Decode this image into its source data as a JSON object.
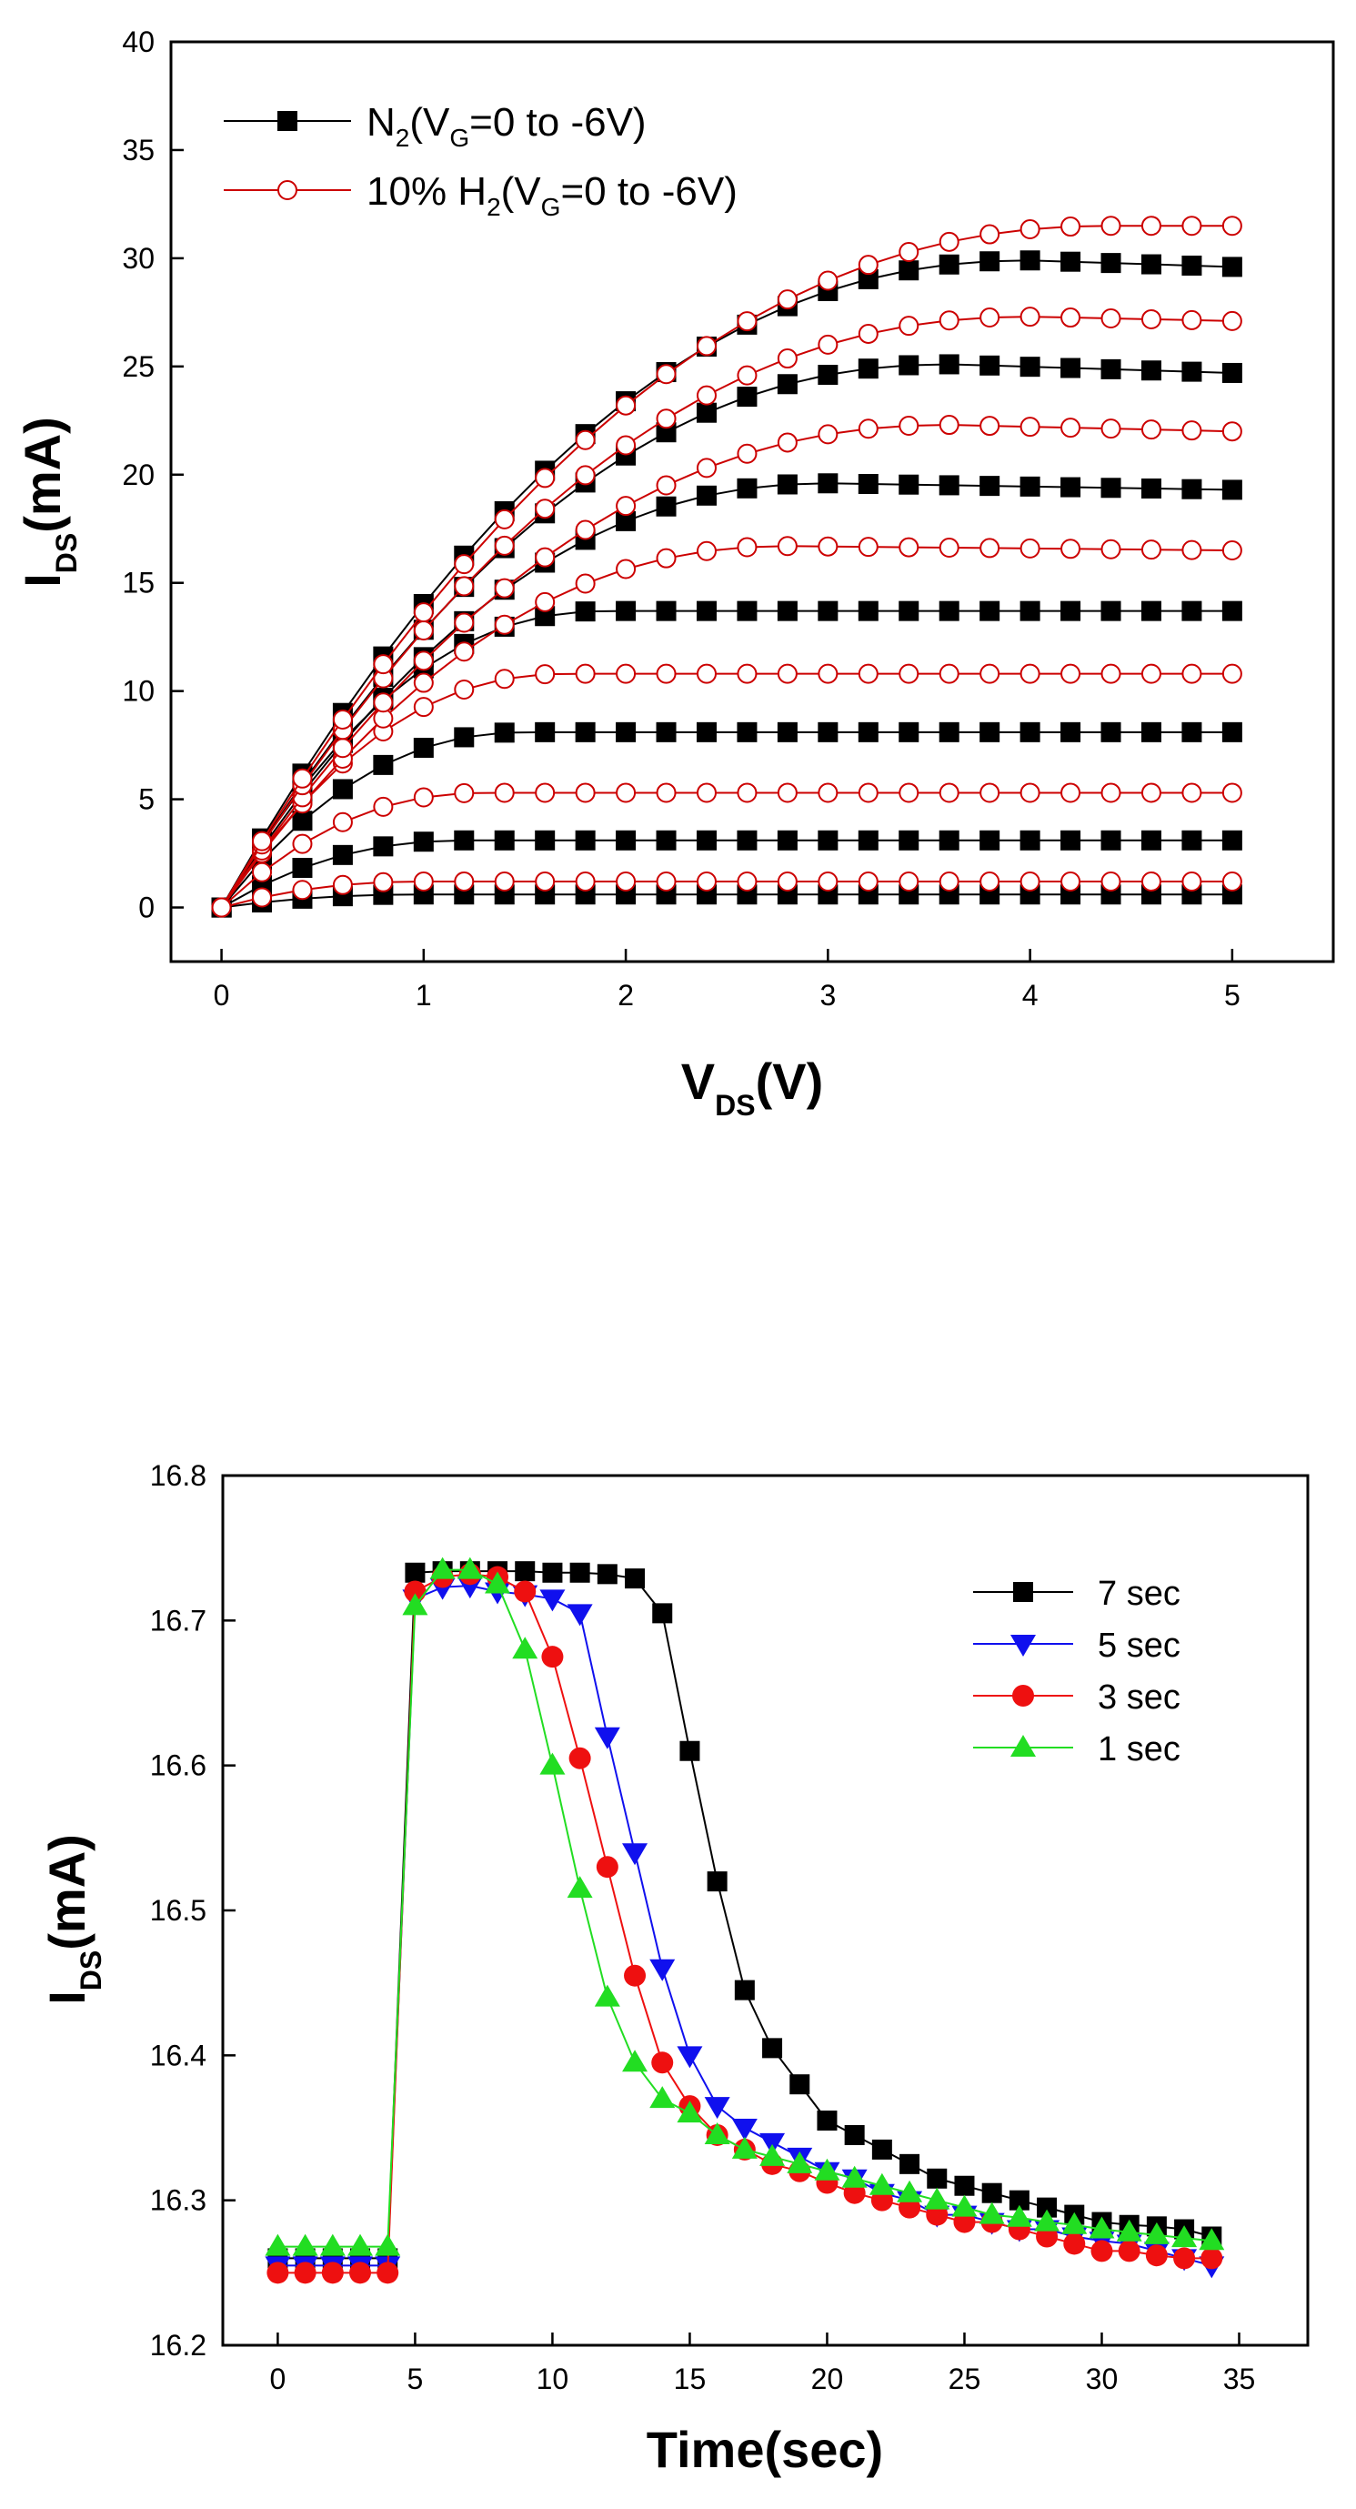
{
  "chart_data": [
    {
      "type": "line",
      "title": "",
      "xlabel": {
        "main": "V",
        "sub": "DS",
        "suffix": "(V)"
      },
      "ylabel": {
        "main": "I",
        "sub": "DS",
        "suffix": "(mA)"
      },
      "xlim": [
        -0.25,
        5.5
      ],
      "ylim": [
        -2.5,
        40
      ],
      "xticks": [
        0,
        1,
        2,
        3,
        4,
        5
      ],
      "xtick_labels": [
        "0",
        "1",
        "2",
        "3",
        "4",
        "5"
      ],
      "yticks": [
        0,
        5,
        10,
        15,
        20,
        25,
        30,
        35,
        40
      ],
      "ytick_labels": [
        "0",
        "5",
        "10",
        "15",
        "20",
        "25",
        "30",
        "35",
        "40"
      ],
      "x": [
        0,
        0.2,
        0.4,
        0.6,
        0.8,
        1.0,
        1.2,
        1.4,
        1.6,
        1.8,
        2.0,
        2.2,
        2.4,
        2.6,
        2.8,
        3.0,
        3.2,
        3.4,
        3.6,
        3.8,
        4.0,
        4.2,
        4.4,
        4.6,
        4.8,
        5.0
      ],
      "legend_position": "top-left",
      "legend": [
        {
          "pre": "N",
          "sub1": "2",
          "mid": "(V",
          "sub2": "G",
          "post": "=0 to -6V)",
          "marker": "square-filled",
          "color": "#000000"
        },
        {
          "pre": "10% H",
          "sub1": "2",
          "mid": "(V",
          "sub2": "G",
          "post": "=0 to -6V)",
          "marker": "circle-open",
          "color": "#cc0000"
        }
      ],
      "series": [
        {
          "group": "N2",
          "color": "#000000",
          "marker": "square-filled",
          "sat": 0.6,
          "peak": 1.0,
          "droop": 0.0
        },
        {
          "group": "N2",
          "color": "#000000",
          "marker": "square-filled",
          "sat": 3.1,
          "peak": 1.2,
          "droop": 0.0
        },
        {
          "group": "N2",
          "color": "#000000",
          "marker": "square-filled",
          "sat": 8.1,
          "peak": 1.5,
          "droop": 0.0
        },
        {
          "group": "N2",
          "color": "#000000",
          "marker": "square-filled",
          "sat": 13.7,
          "peak": 1.9,
          "droop": 0.0
        },
        {
          "group": "N2",
          "color": "#000000",
          "marker": "square-filled",
          "sat": 19.6,
          "peak": 3.0,
          "droop": 0.3
        },
        {
          "group": "N2",
          "color": "#000000",
          "marker": "square-filled",
          "sat": 25.1,
          "peak": 3.6,
          "droop": 0.4
        },
        {
          "group": "N2",
          "color": "#000000",
          "marker": "square-filled",
          "sat": 29.9,
          "peak": 4.0,
          "droop": 0.3
        },
        {
          "group": "H2",
          "color": "#cc0000",
          "marker": "circle-open",
          "sat": 1.2,
          "peak": 1.0,
          "droop": 0.0
        },
        {
          "group": "H2",
          "color": "#cc0000",
          "marker": "circle-open",
          "sat": 5.3,
          "peak": 1.3,
          "droop": 0.0
        },
        {
          "group": "H2",
          "color": "#cc0000",
          "marker": "circle-open",
          "sat": 10.8,
          "peak": 1.7,
          "droop": 0.0
        },
        {
          "group": "H2",
          "color": "#cc0000",
          "marker": "circle-open",
          "sat": 16.7,
          "peak": 2.8,
          "droop": 0.2
        },
        {
          "group": "H2",
          "color": "#cc0000",
          "marker": "circle-open",
          "sat": 22.3,
          "peak": 3.6,
          "droop": 0.3
        },
        {
          "group": "H2",
          "color": "#cc0000",
          "marker": "circle-open",
          "sat": 27.3,
          "peak": 4.0,
          "droop": 0.2
        },
        {
          "group": "H2",
          "color": "#cc0000",
          "marker": "circle-open",
          "sat": 31.5,
          "peak": 4.4,
          "droop": 0.0
        }
      ]
    },
    {
      "type": "line",
      "title": "",
      "xlabel": {
        "main": "Time(sec)",
        "sub": "",
        "suffix": ""
      },
      "ylabel": {
        "main": "I",
        "sub": "DS",
        "suffix": "(mA)"
      },
      "xlim": [
        -2,
        37.5
      ],
      "ylim": [
        16.2,
        16.8
      ],
      "xticks": [
        0,
        5,
        10,
        15,
        20,
        25,
        30,
        35
      ],
      "xtick_labels": [
        "0",
        "5",
        "10",
        "15",
        "20",
        "25",
        "30",
        "35"
      ],
      "yticks": [
        16.2,
        16.3,
        16.4,
        16.5,
        16.6,
        16.7,
        16.8
      ],
      "ytick_labels": [
        "16.2",
        "16.3",
        "16.4",
        "16.5",
        "16.6",
        "16.7",
        "16.8"
      ],
      "x": [
        0,
        1,
        2,
        3,
        4,
        5,
        6,
        7,
        8,
        9,
        10,
        11,
        12,
        13,
        14,
        15,
        16,
        17,
        18,
        19,
        20,
        21,
        22,
        23,
        24,
        25,
        26,
        27,
        28,
        29,
        30,
        31,
        32,
        33,
        34
      ],
      "legend_position": "top-right",
      "series": [
        {
          "name": "7 sec",
          "color": "#000000",
          "marker": "square",
          "values": [
            16.26,
            16.26,
            16.26,
            16.26,
            16.26,
            16.733,
            16.734,
            16.734,
            16.734,
            16.734,
            16.733,
            16.733,
            16.732,
            16.729,
            16.705,
            16.61,
            16.52,
            16.445,
            16.405,
            16.38,
            16.355,
            16.345,
            16.335,
            16.325,
            16.315,
            16.31,
            16.305,
            16.3,
            16.295,
            16.29,
            16.285,
            16.283,
            16.282,
            16.28,
            16.275
          ]
        },
        {
          "name": "5 sec",
          "color": "#1010ee",
          "marker": "triangle-down",
          "values": [
            16.255,
            16.255,
            16.255,
            16.255,
            16.255,
            16.715,
            16.723,
            16.724,
            16.72,
            16.718,
            16.715,
            16.705,
            16.62,
            16.54,
            16.46,
            16.4,
            16.365,
            16.35,
            16.34,
            16.33,
            16.32,
            16.315,
            16.305,
            16.3,
            16.29,
            16.29,
            16.285,
            16.28,
            16.28,
            16.275,
            16.272,
            16.27,
            16.265,
            16.26,
            16.255
          ]
        },
        {
          "name": "3 sec",
          "color": "#ee1010",
          "marker": "circle",
          "values": [
            16.25,
            16.25,
            16.25,
            16.25,
            16.25,
            16.72,
            16.73,
            16.732,
            16.73,
            16.72,
            16.675,
            16.605,
            16.53,
            16.455,
            16.395,
            16.365,
            16.345,
            16.335,
            16.325,
            16.32,
            16.312,
            16.305,
            16.3,
            16.295,
            16.29,
            16.285,
            16.285,
            16.28,
            16.275,
            16.27,
            16.265,
            16.265,
            16.262,
            16.26,
            16.26
          ]
        },
        {
          "name": "1 sec",
          "color": "#22dd22",
          "marker": "triangle-up",
          "values": [
            16.268,
            16.268,
            16.268,
            16.268,
            16.268,
            16.71,
            16.735,
            16.735,
            16.725,
            16.68,
            16.6,
            16.515,
            16.44,
            16.395,
            16.37,
            16.36,
            16.345,
            16.335,
            16.33,
            16.325,
            16.32,
            16.315,
            16.31,
            16.305,
            16.3,
            16.295,
            16.29,
            16.288,
            16.285,
            16.283,
            16.28,
            16.278,
            16.276,
            16.274,
            16.272
          ]
        }
      ]
    }
  ]
}
